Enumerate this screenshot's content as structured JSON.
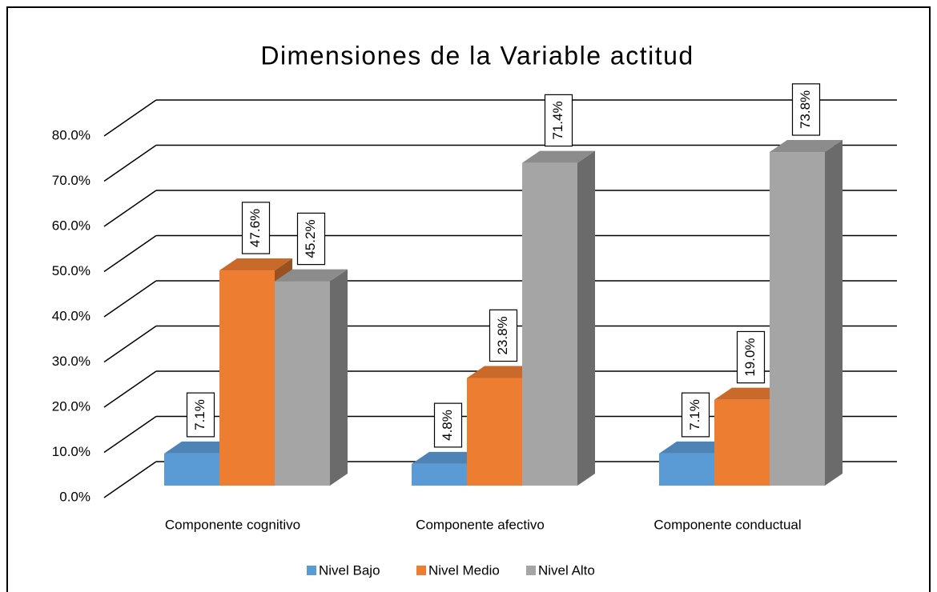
{
  "chart_data": {
    "type": "bar3d",
    "title": "Dimensiones de la Variable actitud",
    "categories": [
      "Componente cognitivo",
      "Componente afectivo",
      "Componente conductual"
    ],
    "series": [
      {
        "name": "Nivel Bajo",
        "color": "#5b9bd5",
        "values": [
          7.1,
          4.8,
          7.1
        ],
        "value_labels": [
          "7.1%",
          "4.8%",
          "7.1%"
        ]
      },
      {
        "name": "Nivel Medio",
        "color": "#ed7d31",
        "values": [
          47.6,
          23.8,
          19.0
        ],
        "value_labels": [
          "47.6%",
          "23.8%",
          "19.0%"
        ]
      },
      {
        "name": "Nivel Alto",
        "color": "#a5a5a5",
        "values": [
          45.2,
          71.4,
          73.8
        ],
        "value_labels": [
          "45.2%",
          "71.4%",
          "73.8%"
        ]
      }
    ],
    "ylim": [
      0,
      80
    ],
    "yticks": [
      {
        "value": 0,
        "label": "0.0%"
      },
      {
        "value": 10,
        "label": "10.0%"
      },
      {
        "value": 20,
        "label": "20.0%"
      },
      {
        "value": 30,
        "label": "30.0%"
      },
      {
        "value": 40,
        "label": "40.0%"
      },
      {
        "value": 50,
        "label": "50.0%"
      },
      {
        "value": 60,
        "label": "60.0%"
      },
      {
        "value": 70,
        "label": "70.0%"
      },
      {
        "value": 80,
        "label": "80.0%"
      }
    ],
    "grid": true,
    "legend": "bottom"
  }
}
